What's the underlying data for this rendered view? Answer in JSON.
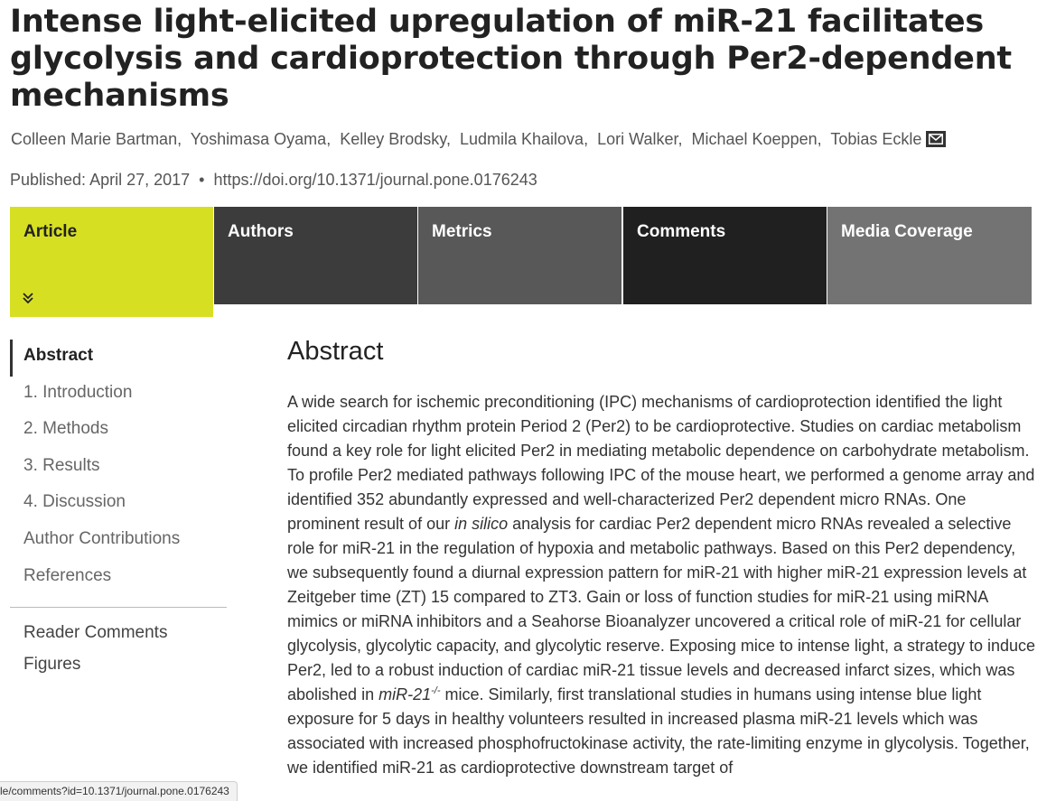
{
  "article": {
    "title": "Intense light-elicited upregulation of miR-21 facilitates glycolysis and cardioprotection through Per2-dependent mechanisms",
    "authors": [
      "Colleen Marie Bartman",
      "Yoshimasa Oyama",
      "Kelley Brodsky",
      "Ludmila Khailova",
      "Lori Walker",
      "Michael Koeppen",
      "Tobias Eckle"
    ],
    "author_separator": ",",
    "contact_icon": "mail-icon",
    "published": "Published: April 27, 2017",
    "bullet": "•",
    "doi": "https://doi.org/10.1371/journal.pone.0176243"
  },
  "tabs": [
    {
      "label": "Article",
      "active": true,
      "color": "#d7df23"
    },
    {
      "label": "Authors",
      "color": "#3c3c3c"
    },
    {
      "label": "Metrics",
      "color": "#585858"
    },
    {
      "label": "Comments",
      "color": "#202020"
    },
    {
      "label": "Media Coverage",
      "color": "#737373"
    }
  ],
  "active_tab_icon": "double-chevron-down-icon",
  "sidenav": {
    "sections": [
      "Abstract",
      "1. Introduction",
      "2. Methods",
      "3. Results",
      "4. Discussion",
      "Author Contributions",
      "References"
    ],
    "extras": [
      "Reader Comments",
      "Figures"
    ]
  },
  "abstract": {
    "heading": "Abstract",
    "p1": "A wide search for ischemic preconditioning (IPC) mechanisms of cardioprotection identified the light elicited circadian rhythm protein Period 2 (Per2) to be cardioprotective. Studies on cardiac metabolism found a key role for light elicited Per2 in mediating metabolic dependence on carbohydrate metabolism. To profile Per2 mediated pathways following IPC of the mouse heart, we performed a genome array and identified 352 abundantly expressed and well-characterized Per2 dependent micro RNAs. One prominent result of our ",
    "italic1": "in silico",
    "p2": " analysis for cardiac Per2 dependent micro RNAs revealed a selective role for miR-21 in the regulation of hypoxia and metabolic pathways. Based on this Per2 dependency, we subsequently found a diurnal expression pattern for miR-21 with higher miR-21 expression levels at Zeitgeber time (ZT) 15 compared to ZT3. Gain or loss of function studies for miR-21 using miRNA mimics or miRNA inhibitors and a Seahorse Bioanalyzer uncovered a critical role of miR-21 for cellular glycolysis, glycolytic capacity, and glycolytic reserve. Exposing mice to intense light, a strategy to induce Per2, led to a robust induction of cardiac miR-21 tissue levels and decreased infarct sizes, which was abolished in ",
    "italic2": "miR-21",
    "sup": "-/-",
    "p3": " mice. Similarly, first translational studies in humans using intense blue light exposure for 5 days in healthy volunteers resulted in increased plasma miR-21 levels which was associated with increased phosphofructokinase activity, the rate-limiting enzyme in glycolysis. Together, we identified miR-21 as cardioprotective downstream target of"
  },
  "status_bar": {
    "url": "le/comments?id=10.1371/journal.pone.0176243"
  }
}
